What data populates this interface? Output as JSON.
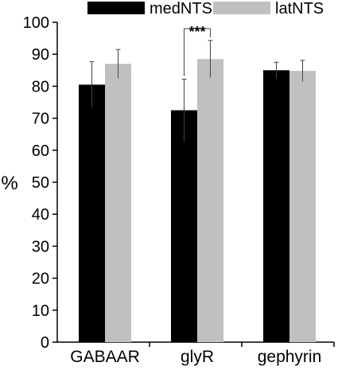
{
  "chart_data": {
    "type": "bar",
    "ylabel": "%",
    "xlabel": "",
    "ylim": [
      0,
      100
    ],
    "yticks": [
      0,
      10,
      20,
      30,
      40,
      50,
      60,
      70,
      80,
      90,
      100
    ],
    "categories": [
      "GABAAR",
      "glyR",
      "gephyrin"
    ],
    "legend_position": "top",
    "series": [
      {
        "name": "medNTS",
        "color": "#000000",
        "values": [
          80.5,
          72.5,
          85.0
        ],
        "errors": [
          7.2,
          9.7,
          2.5
        ]
      },
      {
        "name": "latNTS",
        "color": "#c0c0c0",
        "values": [
          87.0,
          88.5,
          84.8
        ],
        "errors": [
          4.5,
          5.8,
          3.3
        ]
      }
    ],
    "annotations": [
      {
        "text": "***",
        "category": "glyR",
        "between_series": [
          "medNTS",
          "latNTS"
        ]
      }
    ]
  }
}
